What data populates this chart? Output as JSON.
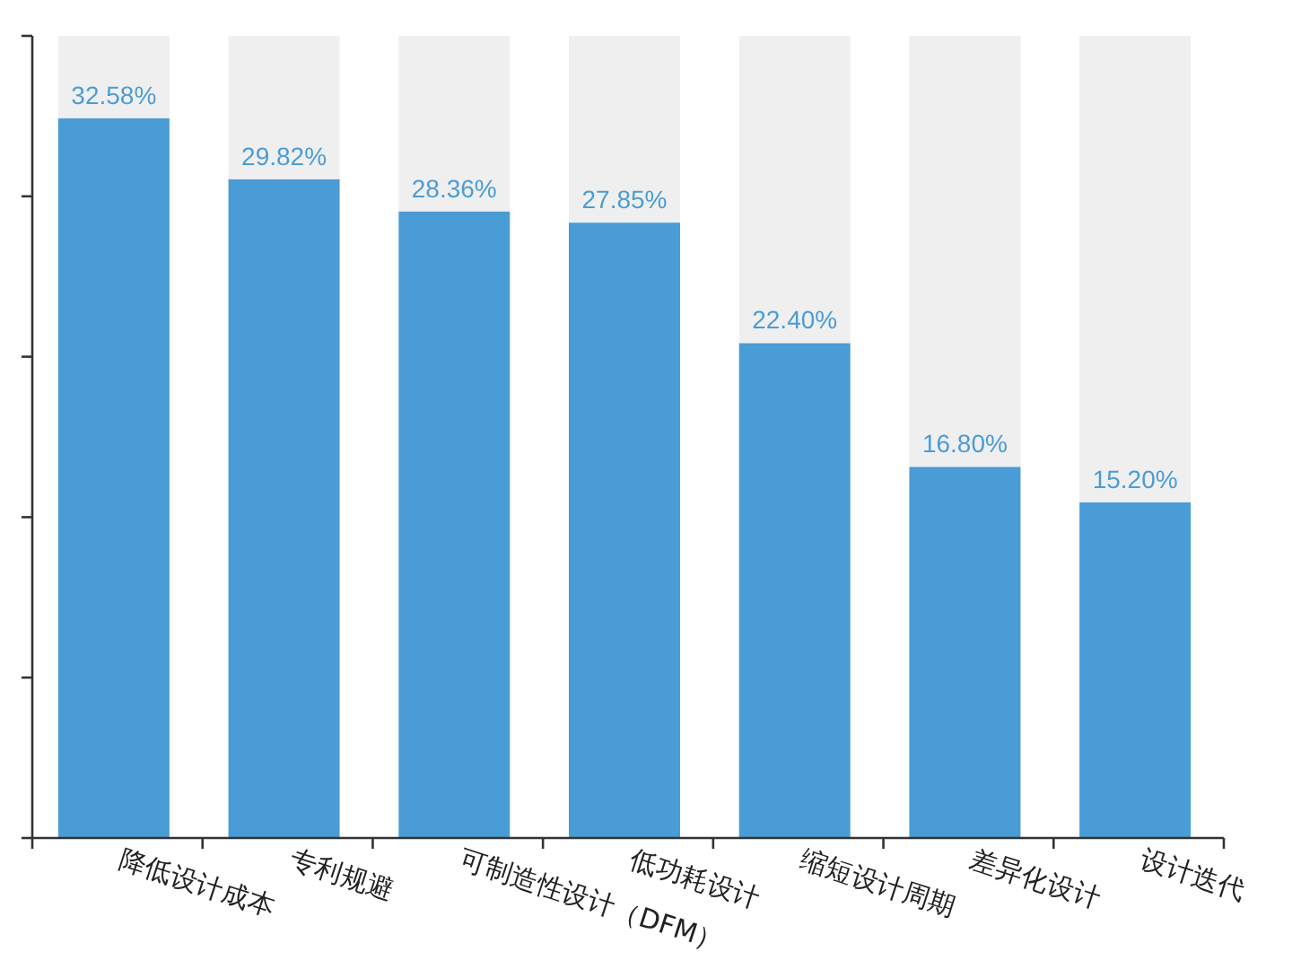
{
  "chart_data": {
    "type": "bar",
    "stacked": true,
    "categories": [
      "降低设计成本",
      "专利规避",
      "可制造性设计（DFM）",
      "低功耗设计",
      "缩短设计周期",
      "差异化设计",
      "设计迭代"
    ],
    "series": [
      {
        "color": "#4a9cd6",
        "values": [
          32.58,
          29.82,
          28.36,
          27.85,
          22.4,
          16.8,
          15.2
        ],
        "value_labels": [
          "32.58%",
          "29.82%",
          "28.36%",
          "27.85%",
          "22.40%",
          "16.80%",
          "15.20%"
        ]
      },
      {
        "color": "#efefef",
        "values": [
          3.72,
          6.48,
          7.94,
          8.45,
          13.9,
          19.5,
          21.1
        ]
      }
    ],
    "ylim": [
      0,
      36.3
    ],
    "yticks": [
      {
        "value": 0,
        "label": null
      },
      {
        "value": 7.26,
        "label": null
      },
      {
        "value": 14.52,
        "label": null
      },
      {
        "value": 21.78,
        "label": null
      },
      {
        "value": 29.04,
        "label": null
      },
      {
        "value": 36.3,
        "label": null
      }
    ],
    "tick_labels": "x",
    "grid": false
  }
}
